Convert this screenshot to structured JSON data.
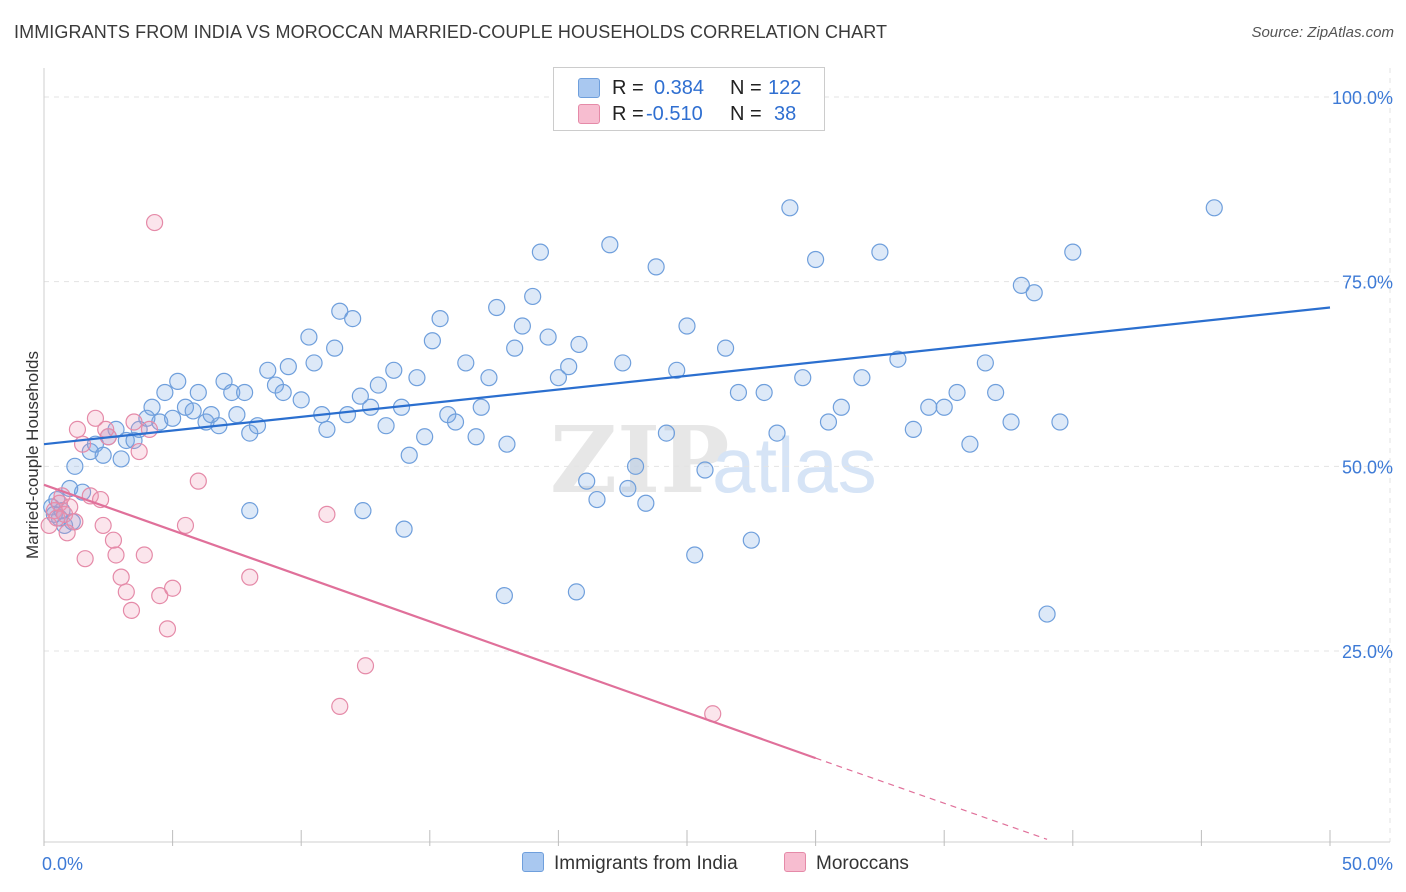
{
  "title": "IMMIGRANTS FROM INDIA VS MOROCCAN MARRIED-COUPLE HOUSEHOLDS CORRELATION CHART",
  "source": "Source: ZipAtlas.com",
  "watermark": {
    "zip": "ZIP",
    "atlas": "atlas"
  },
  "legend": {
    "r_label": "R =",
    "n_label": "N =",
    "rows": [
      {
        "r": "0.384",
        "n": "122",
        "color": "#a9c8f0",
        "border": "#6f9fdc"
      },
      {
        "r": "-0.510",
        "n": "38",
        "color": "#f7bdd0",
        "border": "#e58aa8"
      }
    ]
  },
  "bottom_legend": [
    {
      "label": "Immigrants from India",
      "color": "#a9c8f0",
      "border": "#6f9fdc"
    },
    {
      "label": "Moroccans",
      "color": "#f7bdd0",
      "border": "#e58aa8"
    }
  ],
  "colors": {
    "india_fill": "rgba(120,166,228,0.25)",
    "india_stroke": "#6f9fdc",
    "india_line": "#2b6fcf",
    "moroccan_fill": "rgba(240,150,180,0.25)",
    "moroccan_stroke": "#e58aa8",
    "moroccan_line": "#e0709a",
    "grid": "#e3e3e3",
    "tick": "#3d7ad6"
  },
  "chart_data": {
    "type": "scatter",
    "xlabel": "",
    "ylabel": "Married-couple Households",
    "xlim": [
      0,
      50
    ],
    "ylim": [
      0,
      105
    ],
    "x_tick_labels": [
      {
        "v": 0,
        "label": "0.0%"
      },
      {
        "v": 50,
        "label": "50.0%"
      }
    ],
    "y_tick_labels": [
      {
        "v": 25,
        "label": "25.0%"
      },
      {
        "v": 50,
        "label": "50.0%"
      },
      {
        "v": 75,
        "label": "75.0%"
      },
      {
        "v": 100,
        "label": "100.0%"
      }
    ],
    "grid": true,
    "series": [
      {
        "name": "Immigrants from India",
        "points": [
          [
            0.3,
            44.5
          ],
          [
            0.5,
            45.5
          ],
          [
            0.6,
            43
          ],
          [
            0.8,
            42
          ],
          [
            1.0,
            47
          ],
          [
            1.2,
            50
          ],
          [
            1.5,
            46.5
          ],
          [
            0.7,
            44
          ],
          [
            0.4,
            43.5
          ],
          [
            1.8,
            52
          ],
          [
            2.0,
            53
          ],
          [
            2.3,
            51.5
          ],
          [
            2.5,
            54
          ],
          [
            2.8,
            55
          ],
          [
            3.0,
            51
          ],
          [
            3.2,
            53.5
          ],
          [
            3.5,
            53.5
          ],
          [
            3.7,
            55
          ],
          [
            4.0,
            56.5
          ],
          [
            4.2,
            58
          ],
          [
            4.5,
            56
          ],
          [
            4.7,
            60
          ],
          [
            5.0,
            56.5
          ],
          [
            5.2,
            61.5
          ],
          [
            5.5,
            58
          ],
          [
            5.8,
            57.5
          ],
          [
            6.0,
            60
          ],
          [
            6.3,
            56
          ],
          [
            6.5,
            57
          ],
          [
            6.8,
            55.5
          ],
          [
            7.0,
            61.5
          ],
          [
            7.3,
            60
          ],
          [
            7.5,
            57
          ],
          [
            7.8,
            60
          ],
          [
            8.0,
            54.5
          ],
          [
            8.3,
            55.5
          ],
          [
            8.7,
            63
          ],
          [
            9.0,
            61
          ],
          [
            9.3,
            60
          ],
          [
            9.5,
            63.5
          ],
          [
            10.0,
            59
          ],
          [
            10.3,
            67.5
          ],
          [
            10.5,
            64
          ],
          [
            10.8,
            57
          ],
          [
            11.0,
            55
          ],
          [
            11.3,
            66
          ],
          [
            11.5,
            71
          ],
          [
            11.8,
            57
          ],
          [
            12.0,
            70
          ],
          [
            12.3,
            59.5
          ],
          [
            12.7,
            58
          ],
          [
            13.0,
            61
          ],
          [
            13.3,
            55.5
          ],
          [
            13.6,
            63
          ],
          [
            13.9,
            58
          ],
          [
            14.2,
            51.5
          ],
          [
            14.5,
            62
          ],
          [
            14.8,
            54
          ],
          [
            15.1,
            67
          ],
          [
            15.4,
            70
          ],
          [
            15.7,
            57
          ],
          [
            16.0,
            56
          ],
          [
            16.4,
            64
          ],
          [
            16.8,
            54
          ],
          [
            17.0,
            58
          ],
          [
            17.3,
            62
          ],
          [
            17.6,
            71.5
          ],
          [
            18.0,
            53
          ],
          [
            18.3,
            66
          ],
          [
            18.6,
            69
          ],
          [
            19.0,
            73
          ],
          [
            19.3,
            79
          ],
          [
            19.6,
            67.5
          ],
          [
            20.0,
            62
          ],
          [
            20.4,
            63.5
          ],
          [
            20.8,
            66.5
          ],
          [
            21.1,
            48
          ],
          [
            21.5,
            45.5
          ],
          [
            22.0,
            80
          ],
          [
            22.5,
            64
          ],
          [
            23.0,
            50
          ],
          [
            23.4,
            45
          ],
          [
            23.8,
            77
          ],
          [
            24.2,
            54.5
          ],
          [
            24.6,
            63
          ],
          [
            25.0,
            69
          ],
          [
            25.3,
            38
          ],
          [
            25.7,
            49.5
          ],
          [
            26.5,
            66
          ],
          [
            27.0,
            60
          ],
          [
            27.5,
            40
          ],
          [
            28.0,
            60
          ],
          [
            28.5,
            54.5
          ],
          [
            29.0,
            85
          ],
          [
            29.5,
            62
          ],
          [
            30.0,
            78
          ],
          [
            30.5,
            56
          ],
          [
            31.0,
            58
          ],
          [
            31.8,
            62
          ],
          [
            32.5,
            79
          ],
          [
            33.2,
            64.5
          ],
          [
            33.8,
            55
          ],
          [
            34.4,
            58
          ],
          [
            35.0,
            58
          ],
          [
            35.5,
            60
          ],
          [
            36.0,
            53
          ],
          [
            36.6,
            64
          ],
          [
            37.0,
            60
          ],
          [
            37.6,
            56
          ],
          [
            38.0,
            74.5
          ],
          [
            38.5,
            73.5
          ],
          [
            39.0,
            30
          ],
          [
            39.5,
            56
          ],
          [
            40.0,
            79
          ],
          [
            45.5,
            85
          ],
          [
            17.9,
            32.5
          ],
          [
            14.0,
            41.5
          ],
          [
            20.7,
            33
          ],
          [
            12.4,
            44
          ],
          [
            22.7,
            47
          ],
          [
            8.0,
            44
          ],
          [
            1.1,
            42.5
          ]
        ]
      },
      {
        "name": "Moroccans",
        "points": [
          [
            0.2,
            42
          ],
          [
            0.4,
            44
          ],
          [
            0.5,
            43
          ],
          [
            0.6,
            45
          ],
          [
            0.7,
            46
          ],
          [
            0.8,
            43.5
          ],
          [
            1.0,
            44.5
          ],
          [
            1.2,
            42.5
          ],
          [
            1.3,
            55
          ],
          [
            1.5,
            53
          ],
          [
            1.6,
            37.5
          ],
          [
            1.8,
            46
          ],
          [
            2.0,
            56.5
          ],
          [
            2.2,
            45.5
          ],
          [
            2.3,
            42
          ],
          [
            2.5,
            54
          ],
          [
            2.7,
            40
          ],
          [
            2.8,
            38
          ],
          [
            3.0,
            35
          ],
          [
            3.2,
            33
          ],
          [
            3.4,
            30.5
          ],
          [
            3.5,
            56
          ],
          [
            3.7,
            52
          ],
          [
            3.9,
            38
          ],
          [
            4.1,
            55
          ],
          [
            4.3,
            83
          ],
          [
            4.5,
            32.5
          ],
          [
            4.8,
            28
          ],
          [
            5.0,
            33.5
          ],
          [
            5.5,
            42
          ],
          [
            6.0,
            48
          ],
          [
            8.0,
            35
          ],
          [
            11.0,
            43.5
          ],
          [
            11.5,
            17.5
          ],
          [
            12.5,
            23
          ],
          [
            26.0,
            16.5
          ],
          [
            0.9,
            41
          ],
          [
            2.4,
            55
          ]
        ]
      }
    ],
    "trendlines": [
      {
        "series": "Immigrants from India",
        "x0": 0,
        "y0": 53,
        "x1": 50,
        "y1": 71.5,
        "dashed_from": null
      },
      {
        "series": "Moroccans",
        "x0": 0,
        "y0": 47.5,
        "x1": 30,
        "y1": 10.5,
        "dash_x1": 39,
        "dash_y1": -0.5
      }
    ]
  }
}
